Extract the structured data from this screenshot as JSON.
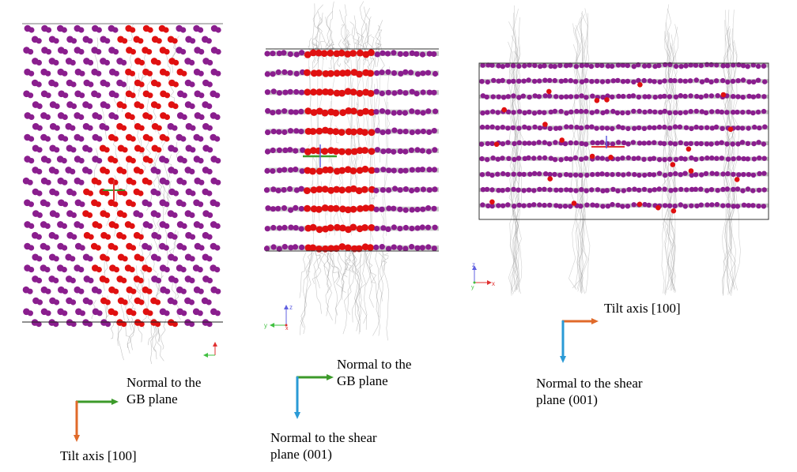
{
  "colors": {
    "gb_atom": "#e01010",
    "bulk_atom": "#8a1e8e",
    "trail": "#9a9a9a",
    "arrow_green": "#3c9a2a",
    "arrow_orange": "#e06a2a",
    "arrow_blue": "#2a9ad6",
    "triad_x": "#e03030",
    "triad_y": "#40c040",
    "triad_z": "#6060e0"
  },
  "panels": [
    {
      "name": "gb-plane-view",
      "axes": {
        "h": "x",
        "v": "z"
      },
      "labels": {
        "green": [
          "Normal to the",
          "GB plane"
        ],
        "orange": [
          "Tilt axis [100]"
        ]
      }
    },
    {
      "name": "shear-plane-side-view",
      "axes": {
        "h": "y",
        "v": "z"
      },
      "labels": {
        "green": [
          "Normal to the",
          "GB plane"
        ],
        "blue": [
          "Normal to the shear",
          "plane (001)"
        ]
      }
    },
    {
      "name": "tilt-axis-view",
      "axes": {
        "h": "x",
        "v": "z"
      },
      "labels": {
        "orange": [
          "Tilt axis [100]"
        ],
        "blue": [
          "Normal to the shear",
          "plane (001)"
        ]
      }
    }
  ]
}
